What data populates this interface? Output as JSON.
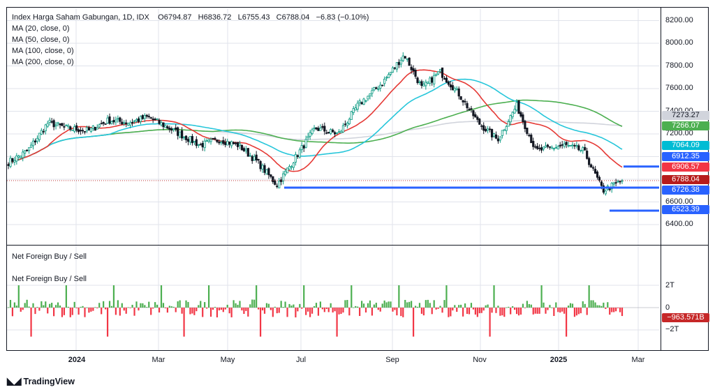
{
  "header": {
    "symbol": "Index Harga Saham Gabungan, 1D, IDX",
    "open": "O6794.87",
    "high": "H6836.72",
    "low": "L6755.43",
    "close": "C6788.04",
    "change": "−6.83 (−0.10%)"
  },
  "indicators": [
    {
      "label": "MA (20, close, 0)",
      "color": "#e53935"
    },
    {
      "label": "MA (50, close, 0)",
      "color": "#26c6da"
    },
    {
      "label": "MA (100, close, 0)",
      "color": "#4caf50"
    },
    {
      "label": "MA (200, close, 0)",
      "color": "#c7c9cf"
    }
  ],
  "volume_pane": {
    "title1": "Net Foreign Buy / Sell",
    "title2": "Net Foreign Buy / Sell",
    "axis_labels": [
      "2T",
      "0",
      "−2T"
    ],
    "last_value": "−963.571B"
  },
  "price_tags": [
    {
      "text": "7273.27",
      "bg": "#d1d4dc",
      "fg": "#131722"
    },
    {
      "text": "7266.07",
      "bg": "#4caf50",
      "fg": "#ffffff"
    },
    {
      "text": "7064.09",
      "bg": "#00bcd4",
      "fg": "#ffffff"
    },
    {
      "text": "6912.35",
      "bg": "#2962ff",
      "fg": "#ffffff"
    },
    {
      "text": "6906.57",
      "bg": "#f23645",
      "fg": "#ffffff"
    },
    {
      "text": "6788.04",
      "bg": "#b71c1c",
      "fg": "#ffffff"
    },
    {
      "text": "6726.38",
      "bg": "#2962ff",
      "fg": "#ffffff"
    },
    {
      "text": "6523.39",
      "bg": "#2962ff",
      "fg": "#ffffff"
    }
  ],
  "price_axis": [
    "8200.00",
    "8000.00",
    "7800.00",
    "7600.00",
    "7400.00",
    "7200.00",
    "7000.00",
    "6800.00",
    "6600.00",
    "6400.00"
  ],
  "time_axis": [
    {
      "label": "2024",
      "bold": true
    },
    {
      "label": "Mar",
      "bold": false
    },
    {
      "label": "May",
      "bold": false
    },
    {
      "label": "Jul",
      "bold": false
    },
    {
      "label": "Sep",
      "bold": false
    },
    {
      "label": "Nov",
      "bold": false
    },
    {
      "label": "2025",
      "bold": true
    },
    {
      "label": "Mar",
      "bold": false
    }
  ],
  "branding": {
    "name": "TradingView"
  },
  "chart_data": {
    "type": "candlestick",
    "price_range": [
      6300,
      8250
    ],
    "closes_approx": [
      {
        "date": "2023-12-04",
        "close": 6950
      },
      {
        "date": "2023-12-18",
        "close": 7050
      },
      {
        "date": "2024-01-02",
        "close": 7300
      },
      {
        "date": "2024-01-16",
        "close": 7250
      },
      {
        "date": "2024-02-01",
        "close": 7230
      },
      {
        "date": "2024-02-15",
        "close": 7320
      },
      {
        "date": "2024-03-01",
        "close": 7300
      },
      {
        "date": "2024-03-15",
        "close": 7350
      },
      {
        "date": "2024-04-01",
        "close": 7240
      },
      {
        "date": "2024-04-22",
        "close": 7100
      },
      {
        "date": "2024-05-06",
        "close": 7150
      },
      {
        "date": "2024-05-20",
        "close": 7100
      },
      {
        "date": "2024-06-03",
        "close": 6950
      },
      {
        "date": "2024-06-17",
        "close": 6750
      },
      {
        "date": "2024-07-01",
        "close": 7000
      },
      {
        "date": "2024-07-15",
        "close": 7250
      },
      {
        "date": "2024-08-01",
        "close": 7200
      },
      {
        "date": "2024-08-15",
        "close": 7450
      },
      {
        "date": "2024-09-02",
        "close": 7650
      },
      {
        "date": "2024-09-18",
        "close": 7900
      },
      {
        "date": "2024-10-01",
        "close": 7600
      },
      {
        "date": "2024-10-14",
        "close": 7750
      },
      {
        "date": "2024-10-28",
        "close": 7550
      },
      {
        "date": "2024-11-11",
        "close": 7300
      },
      {
        "date": "2024-11-25",
        "close": 7150
      },
      {
        "date": "2024-12-09",
        "close": 7450
      },
      {
        "date": "2024-12-23",
        "close": 7050
      },
      {
        "date": "2025-01-13",
        "close": 7100
      },
      {
        "date": "2025-01-27",
        "close": 7050
      },
      {
        "date": "2025-02-10",
        "close": 6700
      },
      {
        "date": "2025-02-24",
        "close": 6788
      }
    ],
    "moving_averages": {
      "MA20_last": 6906.57,
      "MA50_last": 7064.09,
      "MA100_last": 7266.07,
      "MA200_last": 7273.27
    },
    "horizontal_levels": [
      6912.35,
      6726.38,
      6523.39
    ],
    "net_foreign_range": [
      -2,
      2
    ],
    "net_foreign_unit": "T"
  }
}
